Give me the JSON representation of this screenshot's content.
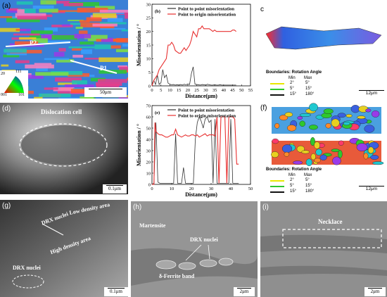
{
  "panels": {
    "a": {
      "label": "(a)",
      "p1": "P1",
      "p2": "P2",
      "scale": "50μm",
      "legend": {
        "top": "111",
        "bl": "001",
        "br": "101",
        "side": "20"
      }
    },
    "b": {
      "label": "(b)"
    },
    "c": {
      "label": "c",
      "scale": "12μm",
      "boundaries": {
        "title": "Boundaries: Rotation Angle",
        "min": "Min",
        "max": "Max",
        "rows": [
          {
            "min": "2°",
            "max": "5°",
            "color": "#e8e800"
          },
          {
            "min": "5°",
            "max": "15°",
            "color": "#2ec82e"
          },
          {
            "min": "15°",
            "max": "180°",
            "color": "#111111"
          }
        ]
      }
    },
    "d": {
      "label": "(d)",
      "title": "Dislocation cell",
      "scale": "0.1μm"
    },
    "e": {
      "label": "(e)"
    },
    "f": {
      "label": "(f)",
      "scale": "12μm",
      "boundaries": {
        "title": "Boundaries: Rotation Angle",
        "min": "Min",
        "max": "Max",
        "rows": [
          {
            "min": "2°",
            "max": "5°",
            "color": "#e8e800"
          },
          {
            "min": "5°",
            "max": "15°",
            "color": "#2ec82e"
          },
          {
            "min": "15°",
            "max": "180°",
            "color": "#111111"
          }
        ]
      }
    },
    "g": {
      "label": "(g)",
      "low": "Low density area",
      "drx1": "DRX nuclei",
      "high": "High density area",
      "drx2": "DRX nuclei",
      "scale": "0.1μm"
    },
    "h": {
      "label": "(h)",
      "martensite": "Martensite",
      "drx": "DRX nuclei",
      "ferrite": "δ-Ferrite band",
      "scale": "2μm"
    },
    "i": {
      "label": "(i)",
      "necklace": "Necklace",
      "scale": "2μm"
    }
  },
  "chart_data": [
    {
      "type": "line",
      "xlabel": "Distance(μm)",
      "ylabel": "Misorientation / °",
      "xlim": [
        0,
        55
      ],
      "ylim": [
        0,
        30
      ],
      "xticks": [
        0,
        5,
        10,
        15,
        20,
        25,
        30,
        35,
        40,
        45,
        50,
        55
      ],
      "yticks": [
        0,
        5,
        10,
        15,
        20,
        25,
        30
      ],
      "legend": [
        "Point to point misorientation",
        "Point to origin misorientation"
      ],
      "series": [
        {
          "name": "Point to point misorientation",
          "color": "#333333",
          "x": [
            0,
            1,
            2,
            3,
            4,
            4.5,
            5,
            6,
            7,
            8,
            9,
            10,
            11,
            12,
            13,
            14,
            15,
            16,
            17,
            18,
            19,
            20,
            21,
            22,
            23,
            24,
            25,
            26,
            27,
            28,
            29,
            30,
            31,
            32,
            33,
            34,
            35,
            36,
            37,
            38,
            39,
            40,
            41,
            42,
            43,
            44,
            45,
            46,
            47
          ],
          "y": [
            0.5,
            2,
            0.5,
            4,
            0.5,
            1,
            1,
            6,
            3,
            4,
            1,
            0.6,
            0.4,
            0.5,
            0.3,
            0.4,
            0.3,
            0.5,
            0.3,
            0.6,
            0.4,
            0.7,
            0.5,
            4.5,
            7,
            0.6,
            0.5,
            0.4,
            0.3,
            0.5,
            0.4,
            0.3,
            0.6,
            0.4,
            0.3,
            0.3,
            0.4,
            0.3,
            0.3,
            0.4,
            0.3,
            0.3,
            0.3,
            0.3,
            0.3,
            0.3,
            0.3,
            0.3,
            0.3
          ]
        },
        {
          "name": "Point to origin misorientation",
          "color": "#e83030",
          "x": [
            0,
            1,
            2,
            3,
            4,
            5,
            6,
            7,
            8,
            9,
            10,
            11,
            12,
            13,
            14,
            15,
            16,
            17,
            18,
            19,
            20,
            21,
            22,
            23,
            24,
            25,
            26,
            27,
            28,
            29,
            30,
            31,
            32,
            33,
            34,
            35,
            36,
            37,
            38,
            39,
            40,
            41,
            42,
            43,
            44,
            45,
            46,
            47
          ],
          "y": [
            0,
            2,
            3,
            4,
            6,
            7,
            8,
            9,
            10,
            15,
            15,
            16,
            15,
            13,
            12.5,
            12,
            12,
            13,
            14,
            13,
            14,
            15,
            17,
            20,
            19,
            18,
            21,
            21,
            22,
            21,
            21,
            21,
            21,
            20.5,
            20,
            20.5,
            20,
            20,
            20,
            20,
            20,
            20,
            20,
            20,
            20,
            20.5,
            20.5,
            20
          ]
        }
      ]
    },
    {
      "type": "line",
      "xlabel": "Distance(μm)",
      "ylabel": "Misorientation / °",
      "xlim": [
        0,
        50
      ],
      "ylim": [
        0,
        70
      ],
      "xticks": [
        0,
        10,
        20,
        30,
        40,
        50
      ],
      "yticks": [
        0,
        10,
        20,
        30,
        40,
        50,
        60,
        70
      ],
      "legend": [
        "Point to point misorientation",
        "Point to origin misorientation"
      ],
      "series": [
        {
          "name": "Point to point misorientation",
          "color": "#333333",
          "x": [
            0,
            1,
            2,
            3,
            4,
            5,
            6,
            7,
            8,
            9,
            10,
            11,
            12,
            13,
            14,
            15,
            16,
            17,
            18,
            19,
            20,
            21,
            22,
            23,
            24,
            25,
            26,
            27,
            28,
            29,
            30,
            31,
            32,
            33,
            34,
            35,
            36,
            37,
            38,
            39,
            40,
            41,
            42,
            43,
            44
          ],
          "y": [
            0,
            1,
            55,
            2,
            1,
            1,
            1,
            1,
            1,
            1,
            1,
            1,
            45,
            1,
            1,
            1,
            15,
            1,
            1,
            1,
            1,
            1,
            40,
            55,
            60,
            56,
            50,
            58,
            60,
            55,
            57,
            1,
            58,
            1,
            1,
            1,
            1,
            1,
            1,
            1,
            58,
            1,
            1,
            1,
            1
          ]
        },
        {
          "name": "Point to origin misorientation",
          "color": "#e83030",
          "x": [
            0,
            1,
            1.5,
            2,
            3,
            4,
            5,
            6,
            7,
            8,
            9,
            10,
            11,
            12,
            13,
            14,
            15,
            16,
            17,
            18,
            19,
            20,
            21,
            22,
            23,
            24,
            25,
            26,
            27,
            28,
            29,
            30,
            31,
            32,
            33,
            34,
            35,
            36,
            37,
            38,
            39,
            40,
            41,
            42,
            43,
            44
          ],
          "y": [
            0,
            0,
            55,
            47,
            45,
            44,
            44,
            43,
            42,
            42,
            43,
            44,
            44,
            49,
            44,
            43,
            42,
            43,
            44,
            43,
            43,
            44,
            44,
            43,
            44,
            42,
            43,
            44,
            45,
            43,
            44,
            44,
            44,
            43,
            60,
            1,
            60,
            60,
            60,
            1,
            60,
            60,
            60,
            58,
            18,
            18
          ]
        }
      ]
    }
  ]
}
